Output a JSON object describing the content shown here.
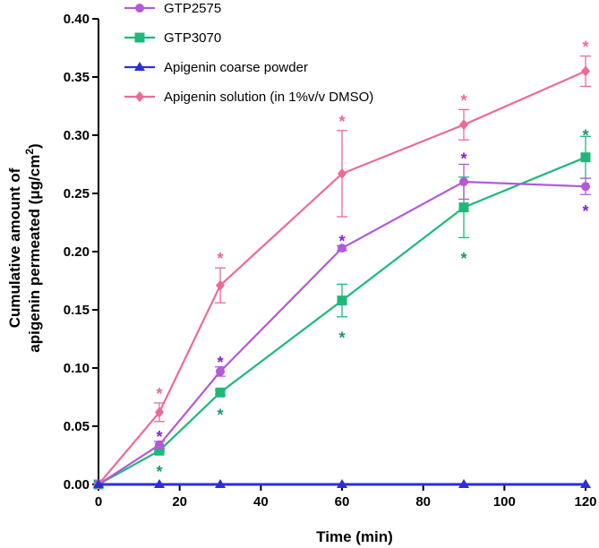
{
  "chart_data": {
    "type": "line",
    "title": "",
    "xlabel": "Time (min)",
    "ylabel_line1": "Cumulative amount of",
    "ylabel_line2": "apigenin permeated (μg/cm",
    "ylabel_sup": "2",
    "ylabel_close": ")",
    "x": [
      0,
      15,
      30,
      60,
      90,
      120
    ],
    "xlim": [
      0,
      120
    ],
    "ylim": [
      0,
      0.4
    ],
    "xticks": [
      0,
      20,
      40,
      60,
      80,
      100,
      120
    ],
    "xtick_labels": [
      "0",
      "20",
      "40",
      "60",
      "80",
      "100",
      "120"
    ],
    "yticks": [
      0,
      0.05,
      0.1,
      0.15,
      0.2,
      0.25,
      0.3,
      0.35,
      0.4
    ],
    "ytick_labels": [
      "0.00",
      "0.05",
      "0.10",
      "0.15",
      "0.20",
      "0.25",
      "0.30",
      "0.35",
      "0.40"
    ],
    "legend_position": "top-left",
    "series": [
      {
        "name": "GTP2575",
        "color": "#b35ad6",
        "marker": "circle",
        "values": [
          0,
          0.034,
          0.097,
          0.203,
          0.26,
          0.256
        ],
        "errors": [
          0,
          0.003,
          0.004,
          0.002,
          0.015,
          0.007
        ],
        "star_color": "#8a1fd1",
        "star_label": "*",
        "stars": [
          {
            "x": 15,
            "y": 0.043
          },
          {
            "x": 30,
            "y": 0.107
          },
          {
            "x": 60,
            "y": 0.211
          },
          {
            "x": 90,
            "y": 0.282
          },
          {
            "x": 120,
            "y": 0.237
          }
        ]
      },
      {
        "name": "GTP3070",
        "color": "#1fb87a",
        "marker": "square",
        "values": [
          0,
          0.029,
          0.079,
          0.158,
          0.238,
          0.281
        ],
        "errors": [
          0,
          0.001,
          0.002,
          0.014,
          0.026,
          0.018
        ],
        "star_color": "#1a9a6a",
        "star_label": "*",
        "stars": [
          {
            "x": 15,
            "y": 0.013
          },
          {
            "x": 30,
            "y": 0.062
          },
          {
            "x": 60,
            "y": 0.128
          },
          {
            "x": 90,
            "y": 0.196
          },
          {
            "x": 120,
            "y": 0.302
          }
        ]
      },
      {
        "name": "Apigenin coarse powder",
        "color": "#2d2ddc",
        "marker": "triangle",
        "values": [
          0,
          0,
          0,
          0,
          0,
          0
        ],
        "errors": [
          0,
          0,
          0,
          0,
          0,
          0
        ],
        "stars": []
      },
      {
        "name": "Apigenin solution (in 1%v/v DMSO)",
        "color": "#ee6a94",
        "marker": "diamond",
        "values": [
          0,
          0.062,
          0.171,
          0.267,
          0.309,
          0.355
        ],
        "errors": [
          0,
          0.008,
          0.015,
          0.037,
          0.013,
          0.013
        ],
        "star_color": "#ee6a94",
        "star_label": "*",
        "stars": [
          {
            "x": 15,
            "y": 0.08
          },
          {
            "x": 30,
            "y": 0.196
          },
          {
            "x": 60,
            "y": 0.314
          },
          {
            "x": 90,
            "y": 0.332
          },
          {
            "x": 120,
            "y": 0.378
          }
        ]
      }
    ]
  }
}
